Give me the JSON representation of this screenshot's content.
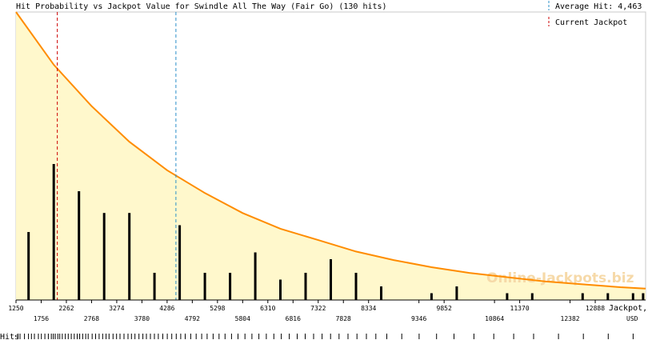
{
  "chart_data": {
    "type": "bar",
    "title": "Hit Probability vs Jackpot Value for Swindle All The Way (Fair Go) (130 hits)",
    "xlabel": "Jackpot,",
    "xunit": "USD",
    "rug_label": "Hits",
    "watermark": "Online-Jackpots.biz",
    "legend": {
      "average_hit_label": "Average Hit: 4,463",
      "current_jackpot_label": "Current Jackpot"
    },
    "average_hit": 4463,
    "current_jackpot": 2080,
    "x_range": [
      1250,
      13900
    ],
    "tick_values": [
      1250,
      1756,
      2262,
      2768,
      3274,
      3780,
      4286,
      4792,
      5298,
      5804,
      6310,
      6816,
      7322,
      7828,
      8334,
      9346,
      9852,
      10864,
      11370,
      12382,
      12888
    ],
    "tick_labels": [
      "1250",
      "1756",
      "2262",
      "2768",
      "3274",
      "3780",
      "4286",
      "4792",
      "5298",
      "5804",
      "6310",
      "6816",
      "7322",
      "7828",
      "8334",
      "9346",
      "9852",
      "10864",
      "11370",
      "12382",
      "12888"
    ],
    "bars": [
      {
        "x": 1503,
        "y": 0.5
      },
      {
        "x": 2009,
        "y": 1.0
      },
      {
        "x": 2515,
        "y": 0.8
      },
      {
        "x": 3021,
        "y": 0.64
      },
      {
        "x": 3527,
        "y": 0.64
      },
      {
        "x": 4033,
        "y": 0.2
      },
      {
        "x": 4539,
        "y": 0.55
      },
      {
        "x": 5045,
        "y": 0.2
      },
      {
        "x": 5551,
        "y": 0.2
      },
      {
        "x": 6057,
        "y": 0.35
      },
      {
        "x": 6563,
        "y": 0.15
      },
      {
        "x": 7069,
        "y": 0.2
      },
      {
        "x": 7575,
        "y": 0.3
      },
      {
        "x": 8081,
        "y": 0.2
      },
      {
        "x": 8587,
        "y": 0.1
      },
      {
        "x": 9599,
        "y": 0.05
      },
      {
        "x": 10105,
        "y": 0.1
      },
      {
        "x": 11117,
        "y": 0.05
      },
      {
        "x": 11623,
        "y": 0.05
      },
      {
        "x": 12635,
        "y": 0.05
      },
      {
        "x": 13141,
        "y": 0.05
      },
      {
        "x": 13647,
        "y": 0.05
      },
      {
        "x": 13850,
        "y": 0.05
      }
    ],
    "curve": {
      "x": [
        1250,
        2009,
        2768,
        3527,
        4286,
        5045,
        5804,
        6563,
        7322,
        8081,
        8840,
        9599,
        10358,
        11117,
        11876,
        12635,
        13394,
        13900
      ],
      "y": [
        2.02,
        1.65,
        1.36,
        1.11,
        0.91,
        0.75,
        0.61,
        0.5,
        0.42,
        0.34,
        0.28,
        0.23,
        0.19,
        0.16,
        0.13,
        0.11,
        0.09,
        0.08
      ]
    },
    "y_range": [
      0,
      2.02
    ],
    "rug_ticks": [
      1290,
      1330,
      1420,
      1500,
      1560,
      1620,
      1700,
      1760,
      1830,
      1900,
      1960,
      2000,
      2040,
      2090,
      2130,
      2180,
      2240,
      2300,
      2360,
      2420,
      2480,
      2530,
      2590,
      2650,
      2700,
      2780,
      2850,
      2920,
      2990,
      3060,
      3120,
      3200,
      3270,
      3340,
      3420,
      3500,
      3570,
      3640,
      3720,
      3800,
      3870,
      3950,
      4030,
      4110,
      4200,
      4290,
      4380,
      4470,
      4560,
      4650,
      4760,
      4870,
      4980,
      5090,
      5210,
      5330,
      5450,
      5580,
      5710,
      5850,
      5990,
      6130,
      6280,
      6430,
      6580,
      6740,
      6900,
      7060,
      7230,
      7400,
      7570,
      7740,
      7920,
      8100,
      8290,
      8480,
      8700,
      9000,
      9350,
      9700,
      10050,
      10450,
      10850,
      11250,
      11650,
      12150,
      12650,
      13150,
      13650
    ]
  }
}
